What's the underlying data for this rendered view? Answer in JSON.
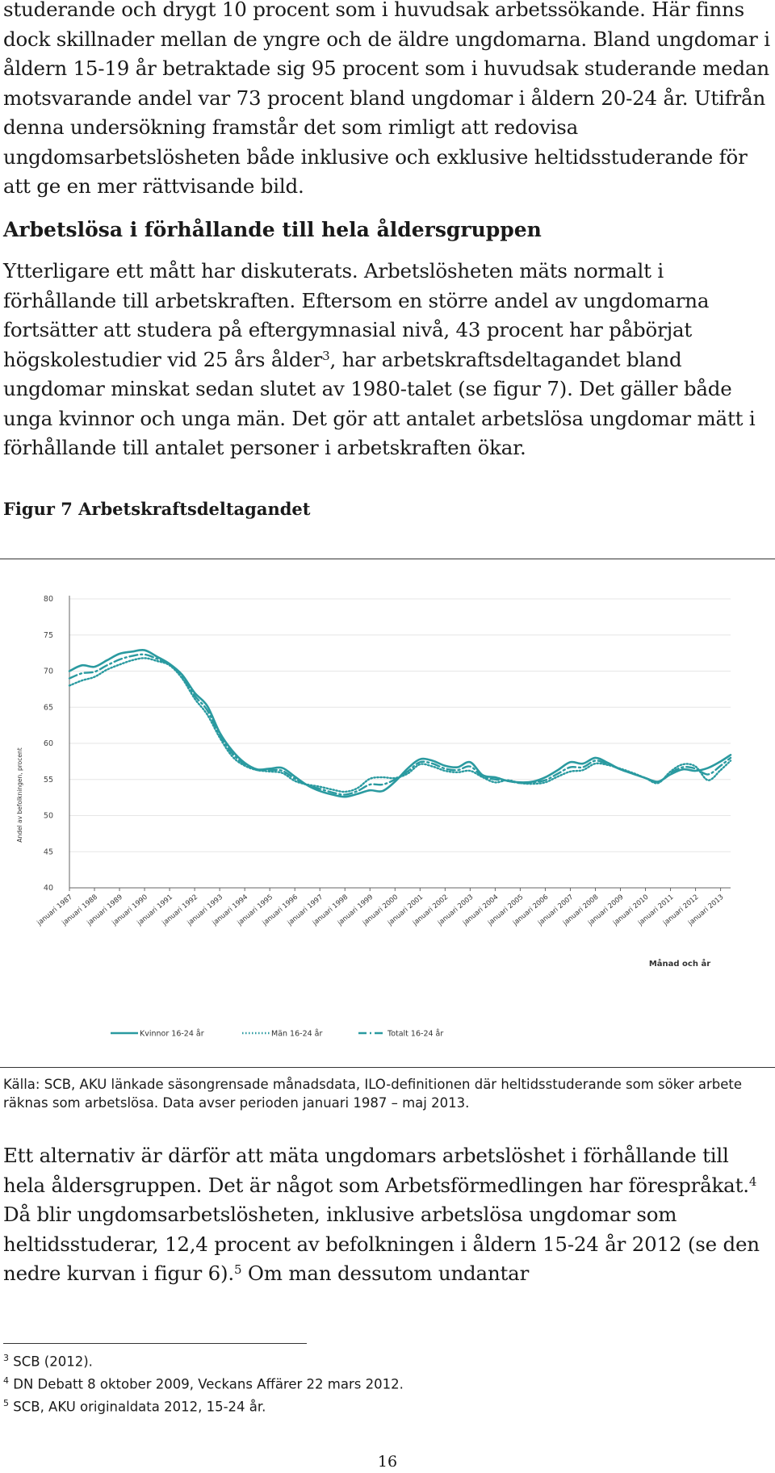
{
  "paragraphs": {
    "p1": "studerande och drygt 10 procent som i huvudsak arbetssökande. Här finns dock skillnader mellan de yngre och de äldre ungdomarna. Bland ungdomar i åldern 15-19 år betraktade sig 95 procent som i huvudsak studerande medan motsvarande andel var 73 procent bland ungdomar i åldern 20-24 år. Utifrån denna undersökning framstår det som rimligt att redovisa ungdomsarbetslösheten både inklusive och exklusive heltidsstuderande för att ge en mer rättvisande bild.",
    "heading": "Arbetslösa i förhållande till hela åldersgruppen",
    "p2_a": "Ytterligare ett mått har diskuterats. Arbetslösheten mäts normalt i förhållande till arbetskraften. Eftersom en större andel av ungdomarna fortsätter att studera på eftergymnasial nivå, 43 procent har påbörjat högskolestudier vid 25 års ålder",
    "p2_sup": "3",
    "p2_b": ", har arbetskraftsdeltagandet bland ungdomar minskat sedan slutet av 1980-talet (se figur 7). Det gäller både unga kvinnor och unga män. Det gör att antalet arbetslösa ungdomar mätt i förhållande till antalet personer i arbetskraften ökar.",
    "p3_a": "Ett alternativ är därför att mäta ungdomars arbetslöshet i förhållande till hela åldersgruppen. Det är något som Arbetsförmedlingen har förespråkat.",
    "p3_sup1": "4",
    "p3_b": " Då blir ungdomsarbetslösheten, inklusive arbetslösa ungdomar som heltidsstuderar, 12,4 procent av befolkningen i åldern 15-24 år 2012 (se den nedre kurvan i figur 6).",
    "p3_sup2": "5",
    "p3_c": " Om man dessutom undantar"
  },
  "figure": {
    "caption": "Figur 7 Arbetskraftsdeltagandet",
    "source": "Källa: SCB, AKU länkade säsongrensade månadsdata, ILO-definitionen där heltidsstuderande som söker arbete räknas som arbetslösa. Data avser perioden januari 1987 – maj 2013."
  },
  "footnotes": [
    {
      "num": "3",
      "text": "SCB (2012)."
    },
    {
      "num": "4",
      "text": "DN Debatt 8 oktober 2009, Veckans Affärer 22 mars 2012."
    },
    {
      "num": "5",
      "text": "SCB, AKU originaldata 2012, 15-24 år."
    }
  ],
  "page_number": "16",
  "chart_data": {
    "type": "line",
    "xlabel": "Månad och år",
    "ylabel": "Andel av befolkningen, procent",
    "ylim": [
      40,
      80
    ],
    "yticks": [
      40,
      45,
      50,
      55,
      60,
      65,
      70,
      75,
      80
    ],
    "grid": true,
    "legend_position": "bottom",
    "x_ticks": [
      "januari 1987",
      "januari 1988",
      "januari 1989",
      "januari 1990",
      "januari 1991",
      "januari 1992",
      "januari 1993",
      "januari 1994",
      "januari 1995",
      "januari 1996",
      "januari 1997",
      "januari 1998",
      "januari 1999",
      "januari 2000",
      "januari 2001",
      "januari 2002",
      "januari 2003",
      "januari 2004",
      "januari 2005",
      "januari 2006",
      "januari 2007",
      "januari 2008",
      "januari 2009",
      "januari 2010",
      "januari 2011",
      "januari 2012",
      "januari 2013"
    ],
    "x": [
      "1987",
      "1987.5",
      "1988",
      "1988.5",
      "1989",
      "1989.5",
      "1990",
      "1990.5",
      "1991",
      "1991.5",
      "1992",
      "1992.5",
      "1993",
      "1993.5",
      "1994",
      "1994.5",
      "1995",
      "1995.5",
      "1996",
      "1996.5",
      "1997",
      "1997.5",
      "1998",
      "1998.5",
      "1999",
      "1999.5",
      "2000",
      "2000.5",
      "2001",
      "2001.5",
      "2002",
      "2002.5",
      "2003",
      "2003.5",
      "2004",
      "2004.5",
      "2005",
      "2005.5",
      "2006",
      "2006.5",
      "2007",
      "2007.5",
      "2008",
      "2008.5",
      "2009",
      "2009.5",
      "2010",
      "2010.5",
      "2011",
      "2011.5",
      "2012",
      "2012.5",
      "2013",
      "2013.4"
    ],
    "series": [
      {
        "name": "Kvinnor 16-24 år",
        "style": "solid",
        "color": "#2a9aa0",
        "values": [
          70.0,
          70.8,
          70.6,
          71.5,
          72.4,
          72.7,
          72.9,
          72.0,
          71.0,
          69.5,
          67.0,
          65.2,
          61.5,
          59.0,
          57.3,
          56.4,
          56.5,
          56.6,
          55.4,
          54.2,
          53.4,
          52.9,
          52.6,
          53.0,
          53.5,
          53.4,
          54.7,
          56.5,
          57.8,
          57.6,
          56.9,
          56.7,
          57.4,
          55.6,
          55.3,
          54.8,
          54.6,
          54.7,
          55.3,
          56.3,
          57.4,
          57.2,
          58.0,
          57.3,
          56.4,
          55.8,
          55.2,
          54.7,
          55.7,
          56.4,
          56.2,
          56.6,
          57.5,
          58.4
        ]
      },
      {
        "name": "Män 16-24 år",
        "style": "dotted",
        "color": "#2a9aa0",
        "values": [
          68.0,
          68.7,
          69.2,
          70.2,
          70.9,
          71.5,
          71.8,
          71.4,
          70.8,
          69.0,
          66.2,
          64.0,
          60.8,
          58.2,
          56.9,
          56.3,
          56.1,
          55.9,
          54.8,
          54.3,
          54.0,
          53.6,
          53.3,
          53.8,
          55.1,
          55.3,
          55.2,
          55.8,
          57.1,
          56.8,
          56.2,
          56.0,
          56.2,
          55.3,
          54.6,
          54.9,
          54.5,
          54.4,
          54.6,
          55.4,
          56.1,
          56.3,
          57.2,
          57.0,
          56.5,
          55.9,
          55.2,
          54.5,
          56.1,
          57.1,
          56.8,
          54.9,
          56.3,
          57.6
        ]
      },
      {
        "name": "Totalt 16-24 år",
        "style": "dashdot",
        "color": "#2a9aa0",
        "values": [
          69.0,
          69.7,
          69.9,
          70.8,
          71.6,
          72.1,
          72.3,
          71.7,
          70.9,
          69.2,
          66.6,
          64.6,
          61.1,
          58.6,
          57.1,
          56.3,
          56.3,
          56.2,
          55.1,
          54.2,
          53.7,
          53.2,
          52.9,
          53.4,
          54.3,
          54.3,
          55.0,
          56.1,
          57.4,
          57.2,
          56.5,
          56.3,
          56.8,
          55.4,
          55.0,
          54.8,
          54.5,
          54.6,
          54.9,
          55.8,
          56.7,
          56.7,
          57.6,
          57.1,
          56.4,
          55.8,
          55.2,
          54.6,
          55.9,
          56.7,
          56.5,
          55.7,
          56.9,
          58.0
        ]
      }
    ]
  }
}
